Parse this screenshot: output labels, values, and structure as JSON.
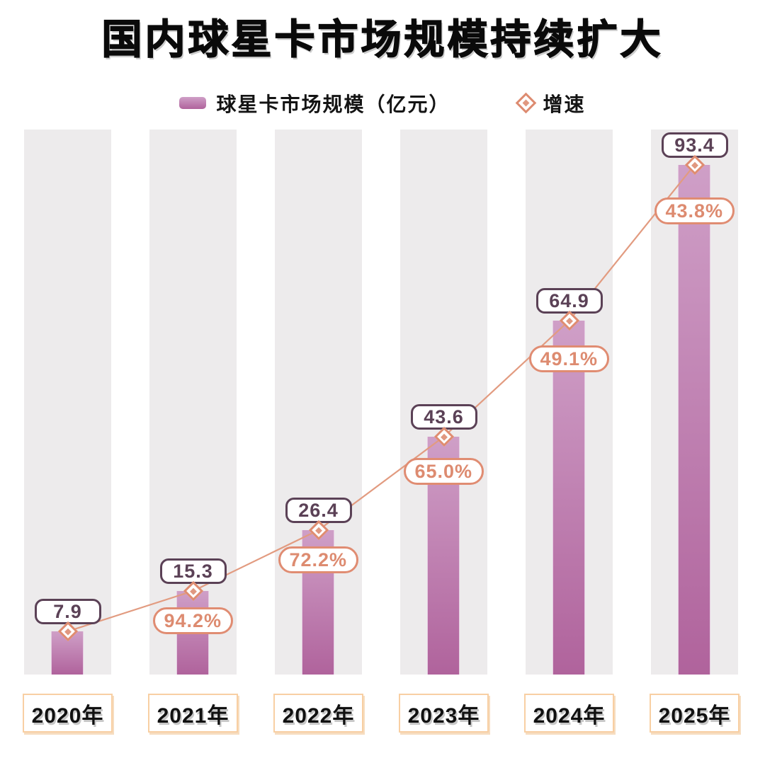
{
  "title": "国内球星卡市场规模持续扩大",
  "legend": {
    "market_size": {
      "label": "球星卡市场规模（亿元）"
    },
    "growth": {
      "label": "增速"
    }
  },
  "colors": {
    "bar_gradient_top": "#cf9fc7",
    "bar_gradient_bottom": "#b0639c",
    "band_background": "#edebec",
    "value_box_accent": "#5b4156",
    "growth_accent": "#dd8b70",
    "line_color": "#e29b80",
    "x_label_border": "#f8cfa3",
    "title_color": "#0a0a0a"
  },
  "chart_data": {
    "type": "bar",
    "title": "国内球星卡市场规模持续扩大",
    "categories": [
      "2020年",
      "2021年",
      "2022年",
      "2023年",
      "2024年",
      "2025年"
    ],
    "series": [
      {
        "name": "球星卡市场规模（亿元）",
        "type": "bar",
        "values": [
          7.9,
          15.3,
          26.4,
          43.6,
          64.9,
          93.4
        ],
        "value_labels": [
          "7.9",
          "15.3",
          "26.4",
          "43.6",
          "64.9",
          "93.4"
        ]
      },
      {
        "name": "增速",
        "type": "line",
        "unit": "%",
        "values": [
          null,
          94.2,
          72.2,
          65.0,
          49.1,
          43.8
        ],
        "value_labels": [
          "",
          "94.2%",
          "72.2%",
          "65.0%",
          "49.1%",
          "43.8%"
        ]
      }
    ],
    "xlabel": "",
    "ylabel": "",
    "ylim": [
      0,
      93.4
    ],
    "grid": false,
    "legend_position": "top"
  }
}
